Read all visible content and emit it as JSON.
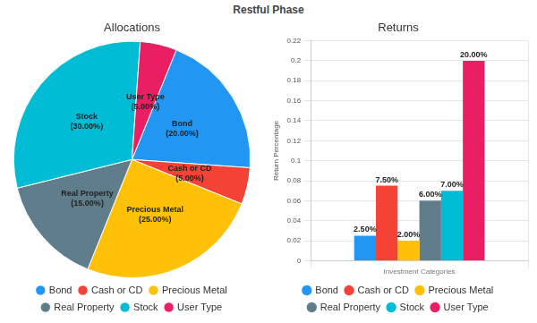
{
  "title": "Restful Phase",
  "chart_data": [
    {
      "type": "pie",
      "title": "Allocations",
      "categories": [
        "Bond",
        "Cash or CD",
        "Precious Metal",
        "Real Property",
        "Stock",
        "User Type"
      ],
      "values": [
        20,
        5,
        25,
        15,
        30,
        5
      ],
      "value_labels": [
        "(20.00%)",
        "(5.00%)",
        "(25.00%)",
        "(15.00%)",
        "(30.00%)",
        "(5.00%)"
      ],
      "colors": [
        "#2196f3",
        "#f44336",
        "#ffc107",
        "#607d8b",
        "#00bcd4",
        "#e91e63"
      ],
      "data_labels": true,
      "legend": "bottom"
    },
    {
      "type": "bar",
      "title": "Returns",
      "x_label": "Investment Categories",
      "y_label": "Return Percentage",
      "categories": [
        "Bond",
        "Cash or CD",
        "Precious Metal",
        "Real Property",
        "Stock",
        "User Type"
      ],
      "values": [
        0.025,
        0.075,
        0.02,
        0.06,
        0.07,
        0.2
      ],
      "value_labels": [
        "2.50%",
        "7.50%",
        "2.00%",
        "6.00%",
        "7.00%",
        "20.00%"
      ],
      "colors": [
        "#2196f3",
        "#f44336",
        "#ffc107",
        "#607d8b",
        "#00bcd4",
        "#e91e63"
      ],
      "ylim": [
        0,
        0.22
      ],
      "yticks": [
        0,
        0.02,
        0.04,
        0.06,
        0.08,
        0.1,
        0.12,
        0.14,
        0.16,
        0.18,
        0.2,
        0.22
      ],
      "grid": true,
      "data_labels": true,
      "tick_labels": "y",
      "legend": "bottom"
    }
  ]
}
